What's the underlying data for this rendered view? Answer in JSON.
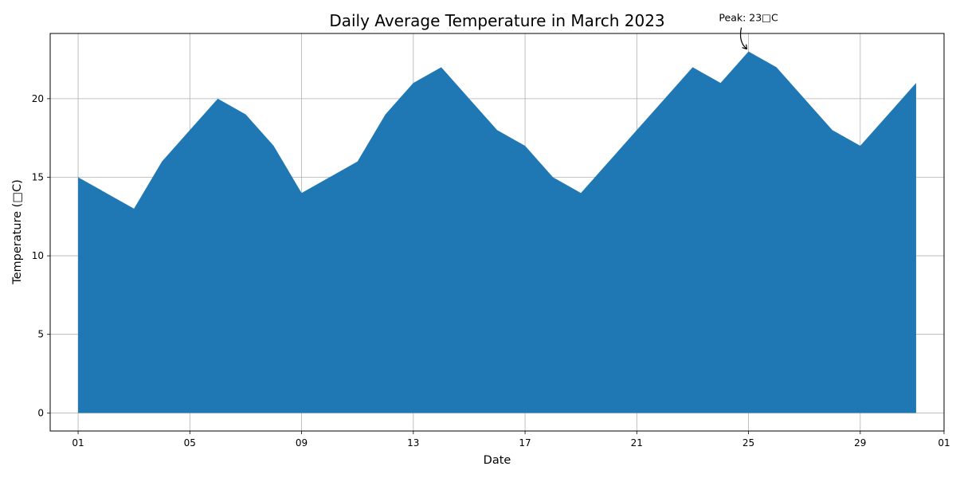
{
  "chart_data": {
    "type": "area",
    "title": "Daily Average Temperature in March 2023",
    "xlabel": "Date",
    "ylabel": "Temperature (□C)",
    "x": [
      "2023-03-01",
      "2023-03-02",
      "2023-03-03",
      "2023-03-04",
      "2023-03-05",
      "2023-03-06",
      "2023-03-07",
      "2023-03-08",
      "2023-03-09",
      "2023-03-10",
      "2023-03-11",
      "2023-03-12",
      "2023-03-13",
      "2023-03-14",
      "2023-03-15",
      "2023-03-16",
      "2023-03-17",
      "2023-03-18",
      "2023-03-19",
      "2023-03-20",
      "2023-03-21",
      "2023-03-22",
      "2023-03-23",
      "2023-03-24",
      "2023-03-25",
      "2023-03-26",
      "2023-03-27",
      "2023-03-28",
      "2023-03-29",
      "2023-03-30",
      "2023-03-31"
    ],
    "values": [
      15,
      14,
      13,
      16,
      18,
      20,
      19,
      17,
      14,
      15,
      16,
      19,
      21,
      22,
      20,
      18,
      17,
      15,
      14,
      16,
      18,
      20,
      22,
      21,
      23,
      22,
      20,
      18,
      17,
      19,
      21
    ],
    "xlim": [
      "2023-02-28",
      "2023-04-01"
    ],
    "ylim": [
      -1.15,
      24.15
    ],
    "x_ticks": [
      "01",
      "05",
      "09",
      "13",
      "17",
      "21",
      "25",
      "29",
      "01"
    ],
    "x_tick_dates": [
      "2023-03-01",
      "2023-03-05",
      "2023-03-09",
      "2023-03-13",
      "2023-03-17",
      "2023-03-21",
      "2023-03-25",
      "2023-03-29",
      "2023-04-01"
    ],
    "y_ticks": [
      0,
      5,
      10,
      15,
      20
    ],
    "grid": true,
    "color": "#1f77b4",
    "annotation": {
      "text": "Peak: 23□C",
      "x": "2023-03-25",
      "y": 23
    }
  }
}
